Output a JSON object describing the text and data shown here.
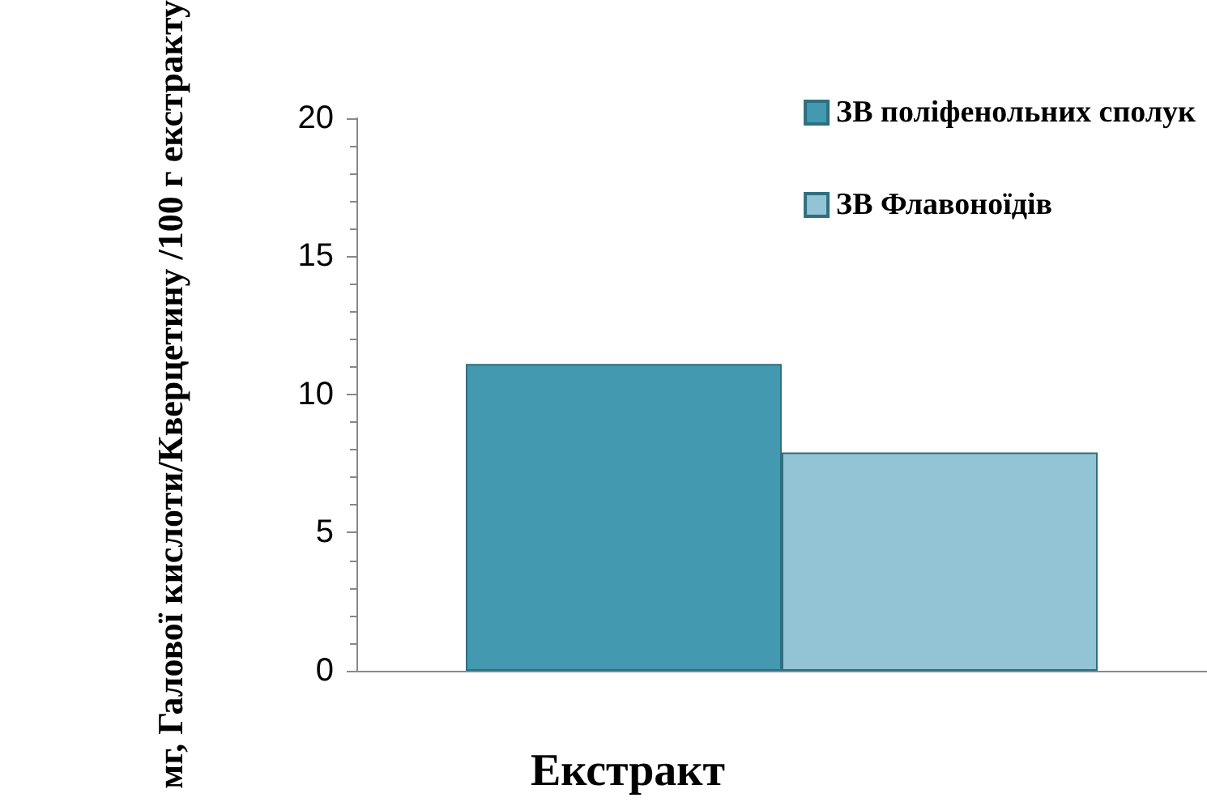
{
  "chart_data": {
    "type": "bar",
    "xlabel": "Екстракт",
    "ylabel": "мг, Галової кислоти/Кверцетину /100 г екстракту",
    "categories": [
      null
    ],
    "series": [
      {
        "name": "ЗВ поліфенольних сполук",
        "color": "#4299b0",
        "values": [
          11.1
        ]
      },
      {
        "name": "ЗВ Флавоноїдів",
        "color": "#93c4d6",
        "values": [
          7.9
        ]
      }
    ],
    "ylim": [
      0,
      20
    ],
    "yticks": [
      0,
      5,
      10,
      15,
      20
    ],
    "grid": false,
    "legend": "top right"
  }
}
